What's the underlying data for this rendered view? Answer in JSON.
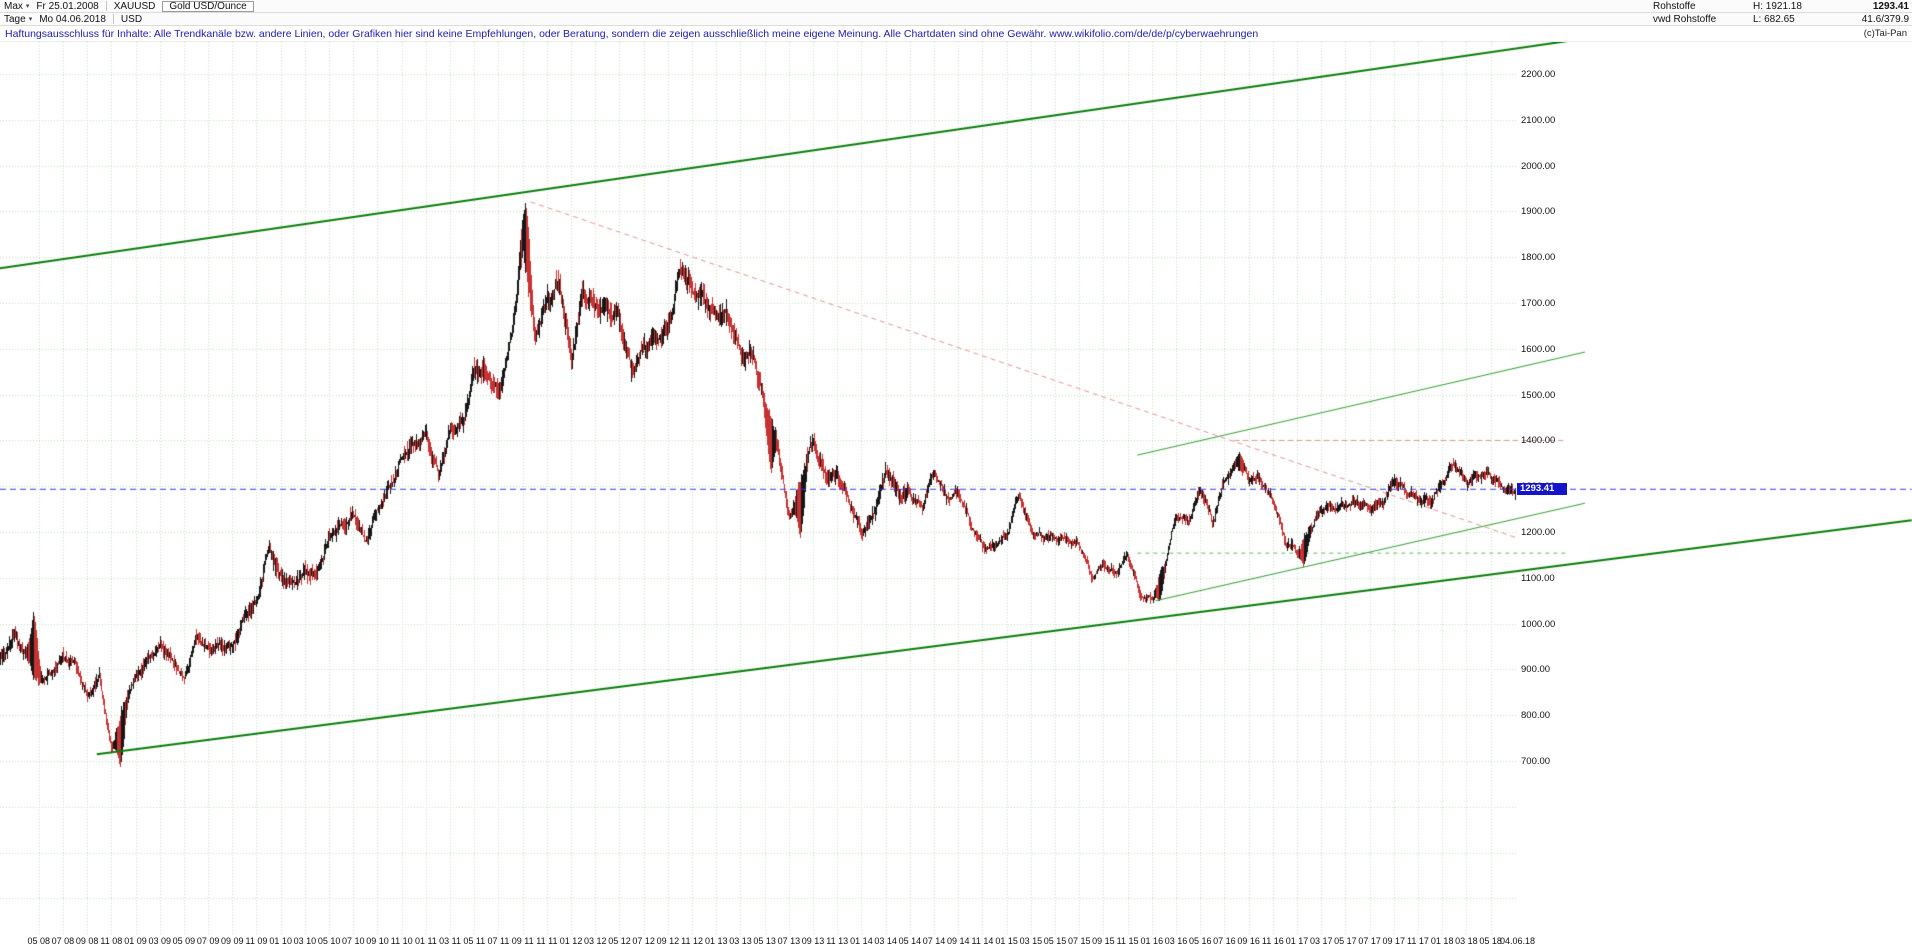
{
  "icons": {
    "dropdown": "▾"
  },
  "header": {
    "range_label": "Max",
    "period_label": "Tage",
    "start_date": "Fr 25.01.2008",
    "end_date": "Mo 04.06.2018",
    "symbol": "XAUUSD",
    "currency": "USD",
    "instrument_name": "Gold USD/Ounce",
    "right": {
      "category": "Rohstoffe",
      "feed": "vwd Rohstoffe",
      "high_label": "H: 1921.18",
      "low_label": "L: 682.65",
      "last_price": "1293.41",
      "change_info": "41.6/379.9",
      "copyright": "(c)Tai-Pan"
    }
  },
  "disclaimer": {
    "text": "Haftungsausschluss für Inhalte: Alle Trendkanäle bzw. andere Linien, oder Grafiken hier sind keine Empfehlungen, oder Beratung, sondern die zeigen ausschließlich meine eigene Meinung. Alle Chartdaten sind ohne Gewähr.  www.wikifolio.com/de/de/p/cyberwaehrungen"
  },
  "axis": {
    "y_ticks": [
      "2200.00",
      "2100.00",
      "2000.00",
      "1900.00",
      "1800.00",
      "1700.00",
      "1600.00",
      "1500.00",
      "1400.00",
      "1300.00",
      "1200.00",
      "1100.00",
      "1000.00",
      "900.00",
      "800.00",
      "700.00"
    ],
    "x_ticks": [
      "05 08",
      "07 08",
      "09 08",
      "11 08",
      "01 09",
      "03 09",
      "05 09",
      "07 09",
      "09 09",
      "11 09",
      "01 10",
      "03 10",
      "05 10",
      "07 10",
      "09 10",
      "11 10",
      "01 11",
      "03 11",
      "05 11",
      "07 11",
      "09 11",
      "11 11",
      "01 12",
      "03 12",
      "05 12",
      "07 12",
      "09 12",
      "11 12",
      "01 13",
      "03 13",
      "05 13",
      "07 13",
      "09 13",
      "11 13",
      "01 14",
      "03 14",
      "05 14",
      "07 14",
      "09 14",
      "11 14",
      "01 15",
      "03 15",
      "05 15",
      "07 15",
      "09 15",
      "11 15",
      "01 16",
      "03 16",
      "05 16",
      "07 16",
      "09 16",
      "11 16",
      "01 17",
      "03 17",
      "05 17",
      "07 17",
      "09 17",
      "11 17",
      "01 18",
      "03 18",
      "05 18"
    ],
    "x_end_label": "04.06.18",
    "current_price_badge": "1293.41"
  },
  "grid": {
    "color": "#bfe3bf",
    "h_step": 100,
    "h_min": 400,
    "h_max": 2200
  },
  "chart_data": {
    "type": "candlestick",
    "title": "Gold USD/Ounce (XAUUSD), Tage (daily), 25.01.2008 - 04.06.2018",
    "ylabel": "USD",
    "x_start": "2008-01-25",
    "x_end": "2018-06-04",
    "ylim": [
      320,
      2270
    ],
    "high": {
      "date": "2011-09",
      "value": 1921.18
    },
    "low": {
      "date": "2008-10",
      "value": 682.65
    },
    "last": 1293.41,
    "monthly_closes": {
      "start": "2008-01",
      "values": [
        923,
        971,
        933,
        871,
        885,
        930,
        918,
        833,
        884,
        730,
        816,
        882,
        927,
        952,
        916,
        883,
        975,
        934,
        953,
        953,
        1008,
        1045,
        1175,
        1097,
        1083,
        1118,
        1113,
        1179,
        1215,
        1244,
        1169,
        1246,
        1307,
        1359,
        1386,
        1421,
        1327,
        1411,
        1439,
        1566,
        1536,
        1502,
        1628,
        1826,
        1620,
        1722,
        1746,
        1564,
        1737,
        1696,
        1669,
        1664,
        1558,
        1598,
        1614,
        1657,
        1772,
        1719,
        1715,
        1676,
        1661,
        1588,
        1597,
        1469,
        1394,
        1235,
        1312,
        1395,
        1327,
        1324,
        1253,
        1205,
        1244,
        1326,
        1284,
        1291,
        1250,
        1327,
        1283,
        1287,
        1209,
        1173,
        1175,
        1184,
        1283,
        1213,
        1184,
        1184,
        1190,
        1172,
        1095,
        1134,
        1114,
        1142,
        1064,
        1061,
        1118,
        1234,
        1233,
        1293,
        1212,
        1321,
        1351,
        1309,
        1316,
        1277,
        1174,
        1152,
        1211,
        1249,
        1245,
        1268,
        1269,
        1241,
        1267,
        1321,
        1280,
        1271,
        1275,
        1303,
        1345,
        1318,
        1325,
        1315,
        1301,
        1293.41
      ]
    },
    "spikes": [
      {
        "month_index": 2.55,
        "price": 1032
      },
      {
        "month_index": 9.7,
        "price": 682.65
      },
      {
        "month_index": 43.2,
        "price": 1921.18
      },
      {
        "month_index": 63.5,
        "price": 1325
      },
      {
        "month_index": 65.9,
        "price": 1182
      },
      {
        "month_index": 95.55,
        "price": 1046
      },
      {
        "month_index": 102.2,
        "price": 1375
      },
      {
        "month_index": 107.5,
        "price": 1124
      }
    ],
    "colors": {
      "up": "#161616",
      "down": "#c83232"
    }
  },
  "overlays": {
    "lines": [
      {
        "name": "upper-trend-channel",
        "t": [
          0,
          158
        ],
        "p": [
          1776,
          2381
        ],
        "color": "#087d08",
        "w": 2,
        "dash": null
      },
      {
        "name": "lower-trend-channel",
        "t": [
          8,
          158
        ],
        "p": [
          715,
          1226
        ],
        "color": "#087d08",
        "w": 2,
        "dash": null
      },
      {
        "name": "rising-resistance-line",
        "t": [
          94,
          131
        ],
        "p": [
          1368,
          1593
        ],
        "color": "#2f9e2f",
        "w": 1,
        "dash": null
      },
      {
        "name": "rising-support-line",
        "t": [
          95.5,
          131
        ],
        "p": [
          1050,
          1263
        ],
        "color": "#2f9e2f",
        "w": 1,
        "dash": null
      },
      {
        "name": "descending-trendline",
        "t": [
          43.85,
          125.3
        ],
        "p": [
          1921,
          1188
        ],
        "color": "#e89090",
        "w": 1,
        "dash": [
          5,
          4
        ]
      },
      {
        "name": "resistance-level",
        "t": [
          102,
          129.5
        ],
        "p": [
          1400,
          1400
        ],
        "color": "#e89090",
        "w": 1,
        "dash": [
          5,
          4
        ]
      },
      {
        "name": "support-level",
        "t": [
          94,
          129.5
        ],
        "p": [
          1154,
          1154
        ],
        "color": "#66bb66",
        "w": 1,
        "dash": [
          4,
          4
        ]
      },
      {
        "name": "current-price-line",
        "t": [
          0,
          158
        ],
        "p": [
          1293.41,
          1293.41
        ],
        "color": "#3838e6",
        "w": 1,
        "dash": [
          6,
          4
        ]
      }
    ]
  }
}
